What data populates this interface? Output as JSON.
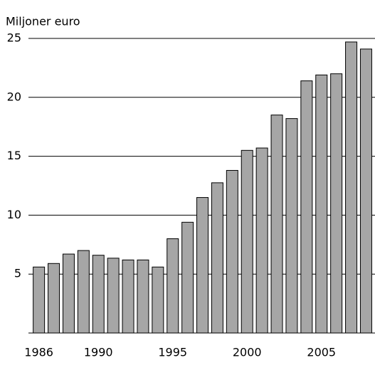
{
  "chart_data": {
    "type": "bar",
    "y_label": "Miljoner euro",
    "x": [
      1986,
      1987,
      1988,
      1989,
      1990,
      1991,
      1992,
      1993,
      1994,
      1995,
      1996,
      1997,
      1998,
      1999,
      2000,
      2001,
      2002,
      2003,
      2004,
      2005,
      2006,
      2007,
      2008
    ],
    "values": [
      5.6,
      5.9,
      6.7,
      7.0,
      6.6,
      6.35,
      6.2,
      6.2,
      5.6,
      8.0,
      9.4,
      11.5,
      12.75,
      13.8,
      15.5,
      15.7,
      18.5,
      18.2,
      21.4,
      21.9,
      22.0,
      24.7,
      24.1
    ],
    "color": "#a6a6a6",
    "xlim": [
      1985.3,
      2008.6
    ],
    "xticks": [
      1986,
      1990,
      1995,
      2000,
      2005
    ],
    "ylim": [
      0,
      25
    ],
    "yticks": [
      5,
      10,
      15,
      20,
      25
    ],
    "grid": true
  }
}
